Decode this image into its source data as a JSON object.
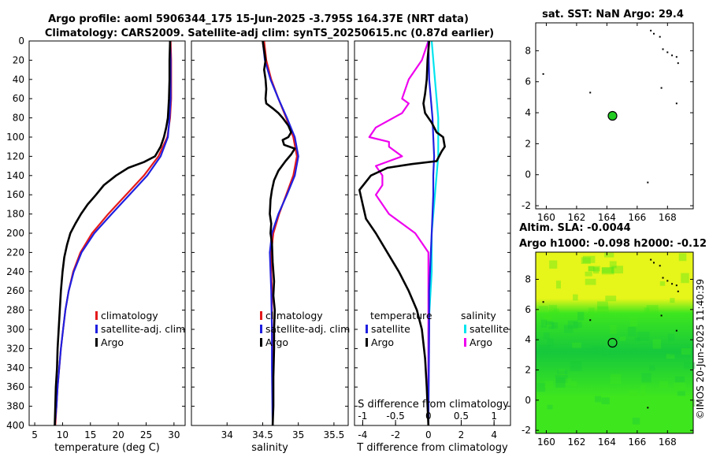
{
  "header": {
    "line1": "Argo profile: aoml 5906344_175 15-Jun-2025 -3.795S 164.37E (NRT data)",
    "line2": "Climatology: CARS2009. Satellite-adj clim: synTS_20250615.nc (0.87d earlier)"
  },
  "side_label": "©IMOS 20-Jun-2025 11:40:39",
  "colors": {
    "climatology": "#e41a1c",
    "satellite": "#1f1fe0",
    "argo": "#000000",
    "sal_satellite": "#00e5ee",
    "sal_argo": "#ee00ee",
    "land": "#000000",
    "argo_marker": "#22cc22",
    "sla_high": "#e6f51a",
    "sla_mid": "#3ee61e",
    "sla_low": "#16c83c"
  },
  "chart_data": [
    {
      "type": "line",
      "id": "temp",
      "xlabel": "temperature (deg C)",
      "ylabel": "",
      "xlim": [
        4,
        32
      ],
      "ylim": [
        0,
        400
      ],
      "y_inverted": true,
      "xticks": [
        5,
        10,
        15,
        20,
        25,
        30
      ],
      "yticks": [
        0,
        20,
        40,
        60,
        80,
        100,
        120,
        140,
        160,
        180,
        200,
        220,
        240,
        260,
        280,
        300,
        320,
        340,
        360,
        380,
        400
      ],
      "legend": [
        "climatology",
        "satellite-adj. clim",
        "Argo"
      ],
      "series": [
        {
          "name": "climatology",
          "color_key": "climatology",
          "width": 2.2,
          "points": [
            [
              29.4,
              0
            ],
            [
              29.5,
              20
            ],
            [
              29.5,
              40
            ],
            [
              29.5,
              60
            ],
            [
              29.3,
              80
            ],
            [
              28.8,
              100
            ],
            [
              27.2,
              120
            ],
            [
              24.6,
              140
            ],
            [
              21.4,
              160
            ],
            [
              18.2,
              180
            ],
            [
              15.3,
              200
            ],
            [
              13.2,
              220
            ],
            [
              11.9,
              240
            ],
            [
              11.1,
              260
            ],
            [
              10.5,
              280
            ],
            [
              10.1,
              300
            ],
            [
              9.7,
              320
            ],
            [
              9.4,
              340
            ],
            [
              9.1,
              360
            ],
            [
              8.9,
              380
            ],
            [
              8.7,
              400
            ]
          ]
        },
        {
          "name": "satellite-adj. clim",
          "color_key": "satellite",
          "width": 2.2,
          "points": [
            [
              29.3,
              0
            ],
            [
              29.4,
              20
            ],
            [
              29.4,
              40
            ],
            [
              29.4,
              60
            ],
            [
              29.2,
              80
            ],
            [
              28.9,
              100
            ],
            [
              27.6,
              120
            ],
            [
              25.2,
              140
            ],
            [
              22.0,
              160
            ],
            [
              18.8,
              180
            ],
            [
              15.7,
              200
            ],
            [
              13.4,
              220
            ],
            [
              12.0,
              240
            ],
            [
              11.1,
              260
            ],
            [
              10.5,
              280
            ],
            [
              10.1,
              300
            ],
            [
              9.7,
              320
            ],
            [
              9.4,
              340
            ],
            [
              9.1,
              360
            ],
            [
              8.9,
              380
            ],
            [
              8.6,
              400
            ]
          ]
        },
        {
          "name": "Argo",
          "color_key": "argo",
          "width": 2.6,
          "points": [
            [
              29.3,
              0
            ],
            [
              29.2,
              20
            ],
            [
              29.2,
              40
            ],
            [
              29.1,
              60
            ],
            [
              28.9,
              80
            ],
            [
              28.6,
              90
            ],
            [
              28.2,
              100
            ],
            [
              27.6,
              110
            ],
            [
              26.6,
              120
            ],
            [
              24.6,
              126
            ],
            [
              21.8,
              132
            ],
            [
              19.6,
              140
            ],
            [
              17.4,
              150
            ],
            [
              16.0,
              160
            ],
            [
              14.5,
              170
            ],
            [
              13.3,
              180
            ],
            [
              12.3,
              190
            ],
            [
              11.4,
              200
            ],
            [
              10.8,
              212
            ],
            [
              10.3,
              225
            ],
            [
              10.0,
              240
            ],
            [
              9.7,
              260
            ],
            [
              9.5,
              280
            ],
            [
              9.3,
              300
            ],
            [
              9.1,
              320
            ],
            [
              9.0,
              340
            ],
            [
              8.8,
              360
            ],
            [
              8.7,
              380
            ],
            [
              8.6,
              400
            ]
          ]
        }
      ]
    },
    {
      "type": "line",
      "id": "sal",
      "xlabel": "salinity",
      "xlim": [
        33.5,
        35.7
      ],
      "ylim": [
        0,
        400
      ],
      "y_inverted": true,
      "xticks": [
        34,
        34.5,
        35,
        35.5
      ],
      "legend": [
        "climatology",
        "satellite-adj. clim",
        "Argo"
      ],
      "series": [
        {
          "name": "climatology",
          "color_key": "climatology",
          "width": 2.2,
          "points": [
            [
              34.52,
              0
            ],
            [
              34.55,
              20
            ],
            [
              34.62,
              40
            ],
            [
              34.72,
              60
            ],
            [
              34.83,
              80
            ],
            [
              34.93,
              100
            ],
            [
              34.98,
              120
            ],
            [
              34.93,
              140
            ],
            [
              34.83,
              160
            ],
            [
              34.73,
              180
            ],
            [
              34.65,
              200
            ],
            [
              34.62,
              220
            ],
            [
              34.62,
              240
            ],
            [
              34.63,
              260
            ],
            [
              34.63,
              300
            ],
            [
              34.64,
              340
            ],
            [
              34.64,
              400
            ]
          ]
        },
        {
          "name": "satellite-adj. clim",
          "color_key": "satellite",
          "width": 2.2,
          "points": [
            [
              34.5,
              0
            ],
            [
              34.53,
              20
            ],
            [
              34.61,
              40
            ],
            [
              34.72,
              60
            ],
            [
              34.84,
              80
            ],
            [
              34.95,
              100
            ],
            [
              35.0,
              120
            ],
            [
              34.95,
              140
            ],
            [
              34.84,
              160
            ],
            [
              34.72,
              180
            ],
            [
              34.63,
              200
            ],
            [
              34.6,
              220
            ],
            [
              34.61,
              240
            ],
            [
              34.62,
              260
            ],
            [
              34.63,
              300
            ],
            [
              34.63,
              340
            ],
            [
              34.64,
              400
            ]
          ]
        },
        {
          "name": "Argo",
          "color_key": "argo",
          "width": 2.6,
          "points": [
            [
              34.5,
              0
            ],
            [
              34.52,
              10
            ],
            [
              34.54,
              20
            ],
            [
              34.52,
              30
            ],
            [
              34.54,
              40
            ],
            [
              34.55,
              50
            ],
            [
              34.54,
              60
            ],
            [
              34.55,
              65
            ],
            [
              34.64,
              70
            ],
            [
              34.72,
              75
            ],
            [
              34.78,
              80
            ],
            [
              34.86,
              88
            ],
            [
              34.9,
              95
            ],
            [
              34.86,
              100
            ],
            [
              34.78,
              103
            ],
            [
              34.8,
              108
            ],
            [
              34.95,
              112
            ],
            [
              34.9,
              118
            ],
            [
              34.82,
              125
            ],
            [
              34.72,
              135
            ],
            [
              34.66,
              145
            ],
            [
              34.63,
              155
            ],
            [
              34.61,
              165
            ],
            [
              34.6,
              180
            ],
            [
              34.62,
              190
            ],
            [
              34.61,
              200
            ],
            [
              34.63,
              210
            ],
            [
              34.64,
              230
            ],
            [
              34.66,
              250
            ],
            [
              34.65,
              265
            ],
            [
              34.67,
              280
            ],
            [
              34.66,
              300
            ],
            [
              34.66,
              320
            ],
            [
              34.65,
              350
            ],
            [
              34.65,
              380
            ],
            [
              34.64,
              400
            ]
          ]
        }
      ]
    },
    {
      "type": "line",
      "id": "diff",
      "xlabel": "T difference from climatology",
      "xlabel_top": "S difference from climatology",
      "xlim": [
        -4.5,
        5
      ],
      "ylim": [
        0,
        400
      ],
      "y_inverted": true,
      "xticks": [
        -4,
        -2,
        0,
        2,
        4
      ],
      "xlim_top": [
        -1.125,
        1.25
      ],
      "xticks_top": [
        -1,
        -0.5,
        0,
        0.5,
        1
      ],
      "xtick_labels_top": [
        "-1",
        "-0.5",
        "0",
        "0.5",
        "1"
      ],
      "legend_titles": [
        "temperature",
        "salinity"
      ],
      "legend": [
        "satellite",
        "Argo",
        "satellite",
        "Argo"
      ],
      "series": [
        {
          "name": "T satellite",
          "color_key": "satellite",
          "width": 2.2,
          "points": [
            [
              0.0,
              0
            ],
            [
              0.05,
              40
            ],
            [
              0.15,
              60
            ],
            [
              0.25,
              80
            ],
            [
              0.3,
              100
            ],
            [
              0.35,
              120
            ],
            [
              0.3,
              140
            ],
            [
              0.3,
              160
            ],
            [
              0.25,
              180
            ],
            [
              0.2,
              200
            ],
            [
              0.15,
              220
            ],
            [
              0.1,
              240
            ],
            [
              0.05,
              260
            ],
            [
              0.05,
              300
            ],
            [
              0.0,
              400
            ]
          ]
        },
        {
          "name": "T Argo",
          "color_key": "argo",
          "width": 2.6,
          "points": [
            [
              0.05,
              0
            ],
            [
              -0.05,
              20
            ],
            [
              -0.1,
              40
            ],
            [
              -0.2,
              55
            ],
            [
              -0.3,
              65
            ],
            [
              -0.2,
              75
            ],
            [
              0.2,
              85
            ],
            [
              0.5,
              95
            ],
            [
              0.9,
              100
            ],
            [
              1.0,
              110
            ],
            [
              0.8,
              115
            ],
            [
              0.5,
              125
            ],
            [
              -1.0,
              128
            ],
            [
              -2.5,
              132
            ],
            [
              -3.5,
              140
            ],
            [
              -4.2,
              155
            ],
            [
              -4.0,
              170
            ],
            [
              -3.8,
              185
            ],
            [
              -3.2,
              200
            ],
            [
              -2.5,
              220
            ],
            [
              -1.8,
              240
            ],
            [
              -1.2,
              260
            ],
            [
              -0.7,
              280
            ],
            [
              -0.4,
              300
            ],
            [
              -0.2,
              330
            ],
            [
              -0.1,
              360
            ],
            [
              0.0,
              400
            ]
          ]
        },
        {
          "name": "S satellite",
          "color_key": "sal_satellite",
          "width": 2.2,
          "points": [
            [
              0.05,
              0
            ],
            [
              0.1,
              40
            ],
            [
              0.15,
              80
            ],
            [
              0.15,
              120
            ],
            [
              0.1,
              160
            ],
            [
              0.05,
              200
            ],
            [
              0.05,
              240
            ],
            [
              0.0,
              300
            ],
            [
              0.0,
              400
            ]
          ]
        },
        {
          "name": "S Argo",
          "color_key": "sal_argo",
          "width": 2.2,
          "points": [
            [
              0.0,
              0
            ],
            [
              -0.1,
              20
            ],
            [
              -0.3,
              40
            ],
            [
              -0.4,
              60
            ],
            [
              -0.3,
              65
            ],
            [
              -0.4,
              75
            ],
            [
              -0.8,
              90
            ],
            [
              -0.9,
              100
            ],
            [
              -0.6,
              105
            ],
            [
              -0.6,
              110
            ],
            [
              -0.4,
              120
            ],
            [
              -0.8,
              130
            ],
            [
              -0.7,
              140
            ],
            [
              -0.7,
              150
            ],
            [
              -0.8,
              160
            ],
            [
              -0.7,
              170
            ],
            [
              -0.6,
              180
            ],
            [
              -0.4,
              190
            ],
            [
              -0.2,
              200
            ],
            [
              -0.1,
              210
            ],
            [
              0.0,
              220
            ],
            [
              0.0,
              400
            ]
          ]
        }
      ]
    },
    {
      "type": "scatter",
      "id": "sst_map",
      "title": "sat. SST: NaN Argo: 29.4",
      "xlim": [
        159.3,
        169.7
      ],
      "ylim": [
        -2.2,
        9.8
      ],
      "xticks": [
        160,
        162,
        164,
        166,
        168
      ],
      "yticks": [
        -2,
        0,
        2,
        4,
        6,
        8
      ],
      "argo_position": [
        164.37,
        3.8
      ],
      "land_points": [
        [
          166.9,
          9.3
        ],
        [
          167.1,
          9.1
        ],
        [
          167.5,
          8.9
        ],
        [
          167.7,
          8.1
        ],
        [
          168.0,
          7.9
        ],
        [
          168.3,
          7.7
        ],
        [
          168.6,
          7.6
        ],
        [
          168.7,
          7.2
        ],
        [
          159.8,
          6.5
        ],
        [
          162.9,
          5.3
        ],
        [
          167.6,
          5.6
        ],
        [
          168.6,
          4.6
        ],
        [
          166.7,
          -0.5
        ]
      ]
    },
    {
      "type": "heatmap",
      "id": "sla_map",
      "title1": "Altim. SLA: -0.0044",
      "title2": "Argo h1000: -0.098 h2000: -0.12",
      "xlim": [
        159.3,
        169.7
      ],
      "ylim": [
        -2.2,
        9.8
      ],
      "xticks": [
        160,
        162,
        164,
        166,
        168
      ],
      "yticks": [
        -2,
        0,
        2,
        4,
        6,
        8
      ],
      "argo_position": [
        164.37,
        3.8
      ],
      "high_band_below_lat": 6.0
    }
  ]
}
